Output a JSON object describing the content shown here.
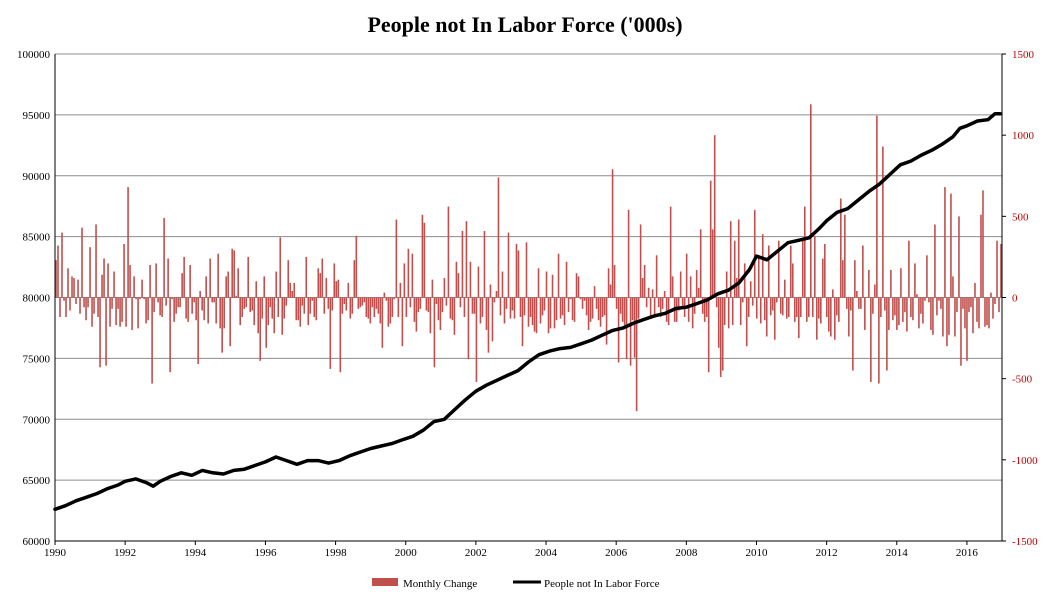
{
  "chart_data": {
    "type": "bar+line",
    "title": "People not In Labor Force ('000s)",
    "x_range": [
      1990,
      2017
    ],
    "x_ticks": [
      "1990",
      "1992",
      "1994",
      "1996",
      "1998",
      "2000",
      "2002",
      "2004",
      "2006",
      "2008",
      "2010",
      "2012",
      "2014",
      "2016"
    ],
    "left_axis": {
      "range": [
        60000,
        100000
      ],
      "ticks": [
        "60000",
        "65000",
        "70000",
        "75000",
        "80000",
        "85000",
        "90000",
        "95000",
        "100000"
      ]
    },
    "right_axis": {
      "range": [
        -1500,
        1500
      ],
      "ticks": [
        "-1500",
        "-1000",
        "-500",
        "0",
        "500",
        "1000",
        "1500"
      ]
    },
    "grid": true,
    "legend_position": "bottom",
    "series": [
      {
        "name": "Monthly Change",
        "kind": "bar",
        "axis": "right",
        "color": "#c0504d",
        "values": [
          230,
          320,
          -120,
          400,
          -20,
          -120,
          180,
          -80,
          130,
          120,
          -40,
          110,
          -100,
          430,
          -60,
          -140,
          -60,
          310,
          -180,
          -100,
          450,
          -120,
          -430,
          140,
          240,
          -420,
          210,
          -180,
          -70,
          160,
          -170,
          -70,
          -180,
          -150,
          330,
          -180,
          680,
          200,
          -200,
          130,
          -10,
          -190,
          -10,
          110,
          -10,
          -160,
          -140,
          200,
          -530,
          -90,
          210,
          -30,
          -110,
          -120,
          490,
          -50,
          240,
          -460,
          -10,
          -150,
          -100,
          -60,
          -60,
          150,
          250,
          -130,
          -150,
          200,
          -100,
          -30,
          -140,
          -410,
          40,
          -80,
          -140,
          130,
          -160,
          240,
          -30,
          -30,
          -160,
          270,
          -190,
          -340,
          -190,
          130,
          160,
          -300,
          300,
          290,
          10,
          180,
          -170,
          -120,
          -70,
          -60,
          250,
          -90,
          -80,
          -170,
          100,
          -220,
          -390,
          -130,
          130,
          -310,
          -170,
          -60,
          -130,
          -220,
          160,
          -120,
          370,
          -230,
          -130,
          -50,
          230,
          90,
          40,
          90,
          -140,
          -140,
          -180,
          -50,
          -100,
          250,
          -170,
          -100,
          -20,
          -120,
          -140,
          180,
          150,
          240,
          -100,
          120,
          -70,
          -440,
          -80,
          210,
          100,
          110,
          -460,
          -100,
          -40,
          -80,
          90,
          -130,
          -100,
          230,
          380,
          -70,
          -60,
          -50,
          -30,
          -120,
          -130,
          -160,
          -60,
          -120,
          -70,
          -100,
          -160,
          -310,
          30,
          -20,
          -180,
          -160,
          -120,
          -10,
          480,
          -120,
          90,
          -300,
          210,
          -120,
          300,
          -60,
          270,
          -150,
          -210,
          -90,
          -70,
          510,
          460,
          -80,
          -90,
          -220,
          110,
          -430,
          -40,
          -140,
          -200,
          -90,
          120,
          -50,
          560,
          -130,
          -140,
          -230,
          220,
          150,
          -60,
          410,
          -120,
          470,
          -380,
          220,
          -100,
          -100,
          -520,
          190,
          -160,
          -120,
          410,
          -200,
          -340,
          80,
          -270,
          -30,
          40,
          740,
          -110,
          160,
          -160,
          -70,
          400,
          -130,
          -80,
          -130,
          330,
          290,
          -120,
          -300,
          -110,
          340,
          -180,
          -120,
          -170,
          -210,
          -220,
          180,
          -160,
          -110,
          -80,
          160,
          -220,
          -190,
          140,
          -190,
          -140,
          270,
          -130,
          -110,
          -170,
          220,
          -90,
          -10,
          -140,
          -150,
          150,
          130,
          -10,
          -70,
          -20,
          -110,
          -200,
          -150,
          -130,
          70,
          -70,
          -140,
          -180,
          -120,
          -110,
          -290,
          180,
          80,
          790,
          200,
          -70,
          -400,
          -100,
          -150,
          -170,
          -380,
          540,
          -420,
          -140,
          -370,
          -700,
          -130,
          450,
          120,
          200,
          -60,
          60,
          -120,
          50,
          -110,
          260,
          -60,
          -120,
          -70,
          40,
          -150,
          -170,
          560,
          130,
          -150,
          -150,
          -80,
          160,
          -60,
          -120,
          270,
          -150,
          130,
          -190,
          -100,
          170,
          60,
          420,
          -100,
          -150,
          -120,
          -460,
          720,
          420,
          1000,
          -60,
          -310,
          -490,
          -450,
          -170,
          160,
          -190,
          470,
          -170,
          350,
          120,
          480,
          -170,
          -30,
          210,
          -300,
          -120,
          100,
          -50,
          540,
          -130,
          260,
          -160,
          390,
          -140,
          -240,
          320,
          -110,
          -80,
          -260,
          -30,
          350,
          -100,
          -110,
          110,
          -130,
          -120,
          320,
          210,
          -150,
          -120,
          -250,
          -120,
          370,
          560,
          -150,
          -120,
          1190,
          -120,
          380,
          -260,
          -130,
          -160,
          240,
          330,
          -120,
          -210,
          -240,
          50,
          -260,
          -110,
          -150,
          610,
          230,
          510,
          -70,
          -240,
          -80,
          -450,
          230,
          40,
          -70,
          -70,
          320,
          -200,
          0,
          170,
          -520,
          -100,
          80,
          1120,
          -530,
          -120,
          930,
          -80,
          -450,
          -200,
          170,
          -140,
          -110,
          -200,
          -170,
          180,
          -150,
          -90,
          -210,
          350,
          -120,
          -140,
          210,
          20,
          -190,
          -100,
          -160,
          -20,
          260,
          -30,
          -200,
          -230,
          450,
          -110,
          -20,
          -70,
          -240,
          680,
          -300,
          -230,
          640,
          130,
          -240,
          -90,
          500,
          -420,
          -70,
          -190,
          -390,
          -90,
          -60,
          -220,
          90,
          -150,
          -190,
          510,
          660,
          -180,
          -170,
          -190,
          30,
          -130,
          -40,
          350,
          -90,
          330
        ]
      },
      {
        "name": "People not In Labor Force",
        "kind": "line",
        "axis": "left",
        "color": "#000000",
        "points": [
          [
            1990.0,
            62600
          ],
          [
            1990.3,
            62900
          ],
          [
            1990.6,
            63300
          ],
          [
            1990.9,
            63600
          ],
          [
            1991.2,
            63900
          ],
          [
            1991.5,
            64300
          ],
          [
            1991.8,
            64600
          ],
          [
            1992.0,
            64900
          ],
          [
            1992.3,
            65100
          ],
          [
            1992.6,
            64800
          ],
          [
            1992.8,
            64500
          ],
          [
            1993.0,
            64900
          ],
          [
            1993.3,
            65300
          ],
          [
            1993.6,
            65600
          ],
          [
            1993.9,
            65400
          ],
          [
            1994.2,
            65800
          ],
          [
            1994.5,
            65600
          ],
          [
            1994.8,
            65500
          ],
          [
            1995.1,
            65800
          ],
          [
            1995.4,
            65900
          ],
          [
            1995.7,
            66200
          ],
          [
            1996.0,
            66500
          ],
          [
            1996.3,
            66900
          ],
          [
            1996.6,
            66600
          ],
          [
            1996.9,
            66300
          ],
          [
            1997.2,
            66600
          ],
          [
            1997.5,
            66600
          ],
          [
            1997.8,
            66400
          ],
          [
            1998.1,
            66600
          ],
          [
            1998.4,
            67000
          ],
          [
            1998.7,
            67300
          ],
          [
            1999.0,
            67600
          ],
          [
            1999.3,
            67800
          ],
          [
            1999.6,
            68000
          ],
          [
            1999.9,
            68300
          ],
          [
            2000.2,
            68600
          ],
          [
            2000.5,
            69100
          ],
          [
            2000.8,
            69800
          ],
          [
            2001.1,
            70000
          ],
          [
            2001.4,
            70800
          ],
          [
            2001.7,
            71600
          ],
          [
            2002.0,
            72300
          ],
          [
            2002.3,
            72800
          ],
          [
            2002.6,
            73200
          ],
          [
            2002.9,
            73600
          ],
          [
            2003.2,
            74000
          ],
          [
            2003.5,
            74700
          ],
          [
            2003.8,
            75300
          ],
          [
            2004.1,
            75600
          ],
          [
            2004.4,
            75800
          ],
          [
            2004.7,
            75900
          ],
          [
            2005.0,
            76200
          ],
          [
            2005.3,
            76500
          ],
          [
            2005.6,
            76900
          ],
          [
            2005.9,
            77300
          ],
          [
            2006.2,
            77500
          ],
          [
            2006.5,
            77900
          ],
          [
            2006.8,
            78200
          ],
          [
            2007.1,
            78500
          ],
          [
            2007.4,
            78700
          ],
          [
            2007.7,
            79100
          ],
          [
            2008.0,
            79200
          ],
          [
            2008.3,
            79500
          ],
          [
            2008.6,
            79800
          ],
          [
            2008.9,
            80300
          ],
          [
            2009.2,
            80600
          ],
          [
            2009.5,
            81200
          ],
          [
            2009.8,
            82300
          ],
          [
            2010.0,
            83400
          ],
          [
            2010.3,
            83100
          ],
          [
            2010.6,
            83800
          ],
          [
            2010.9,
            84500
          ],
          [
            2011.2,
            84700
          ],
          [
            2011.5,
            84900
          ],
          [
            2011.8,
            85700
          ],
          [
            2012.0,
            86300
          ],
          [
            2012.3,
            87000
          ],
          [
            2012.6,
            87300
          ],
          [
            2012.9,
            88000
          ],
          [
            2013.2,
            88700
          ],
          [
            2013.5,
            89300
          ],
          [
            2013.8,
            90100
          ],
          [
            2014.1,
            90900
          ],
          [
            2014.4,
            91200
          ],
          [
            2014.7,
            91700
          ],
          [
            2015.0,
            92100
          ],
          [
            2015.3,
            92600
          ],
          [
            2015.6,
            93200
          ],
          [
            2015.8,
            93900
          ],
          [
            2016.0,
            94100
          ],
          [
            2016.3,
            94500
          ],
          [
            2016.6,
            94600
          ],
          [
            2016.8,
            95100
          ],
          [
            2016.95,
            95100
          ]
        ]
      }
    ]
  }
}
